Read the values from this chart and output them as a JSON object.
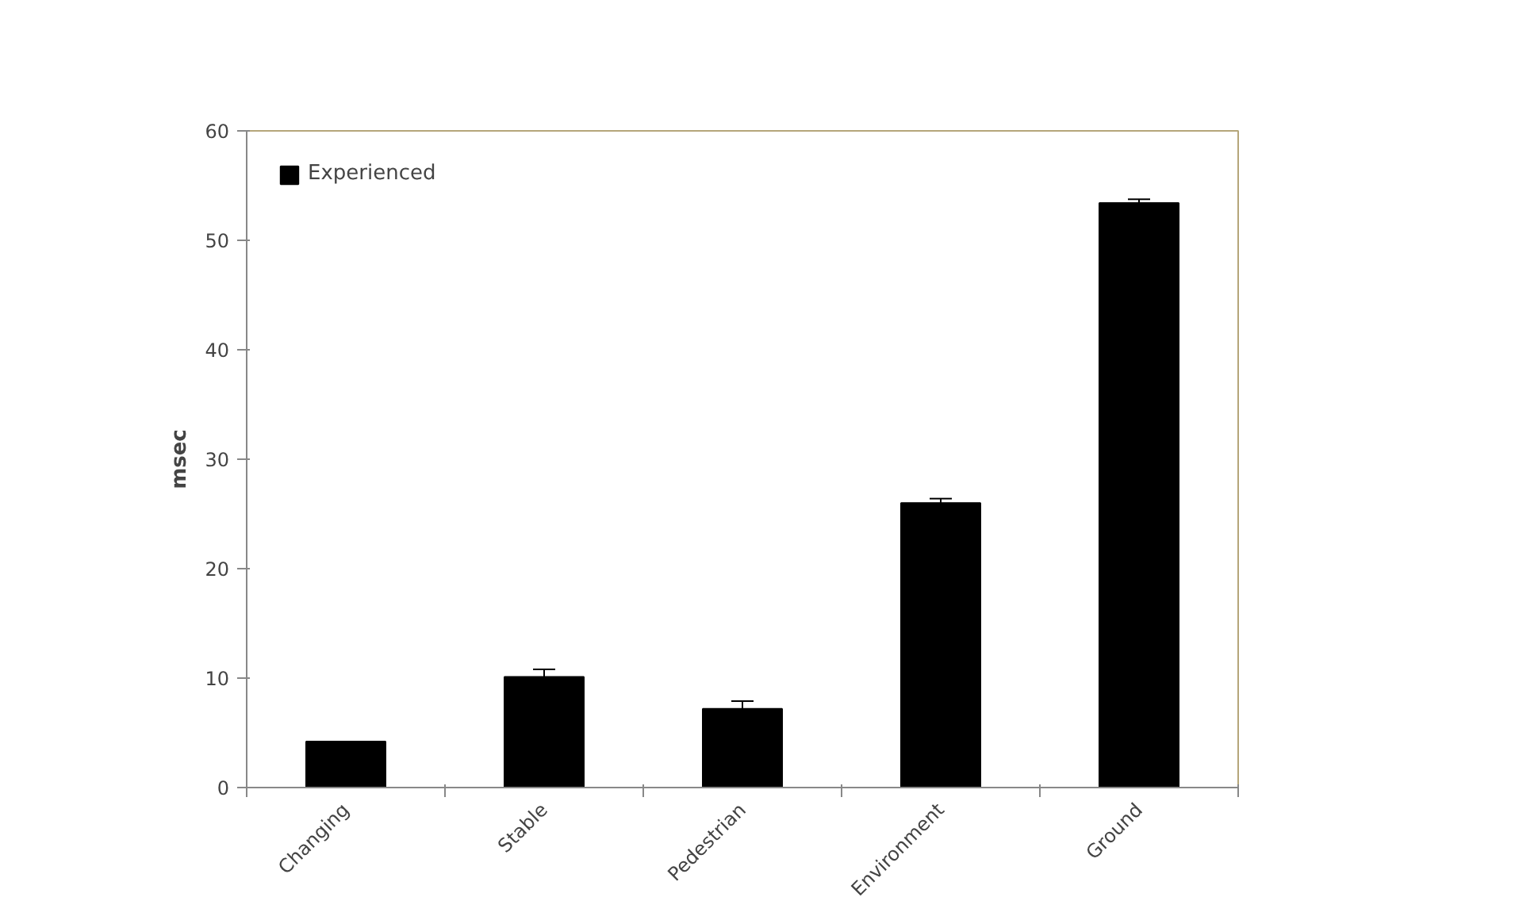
{
  "chart_data": {
    "type": "bar",
    "ylabel": "msec",
    "categories": [
      "Changing",
      "Stable",
      "Pedestrian",
      "Environment",
      "Ground"
    ],
    "series": [
      {
        "name": "Experienced",
        "color": "#000000",
        "values": [
          4.2,
          10.1,
          7.2,
          26.0,
          53.4
        ],
        "errors": [
          null,
          0.7,
          0.7,
          0.4,
          0.35
        ]
      }
    ],
    "ylim": [
      0,
      60
    ],
    "yticks": [
      0,
      10,
      20,
      30,
      40,
      50,
      60
    ],
    "grid": false,
    "legend": "top left"
  }
}
